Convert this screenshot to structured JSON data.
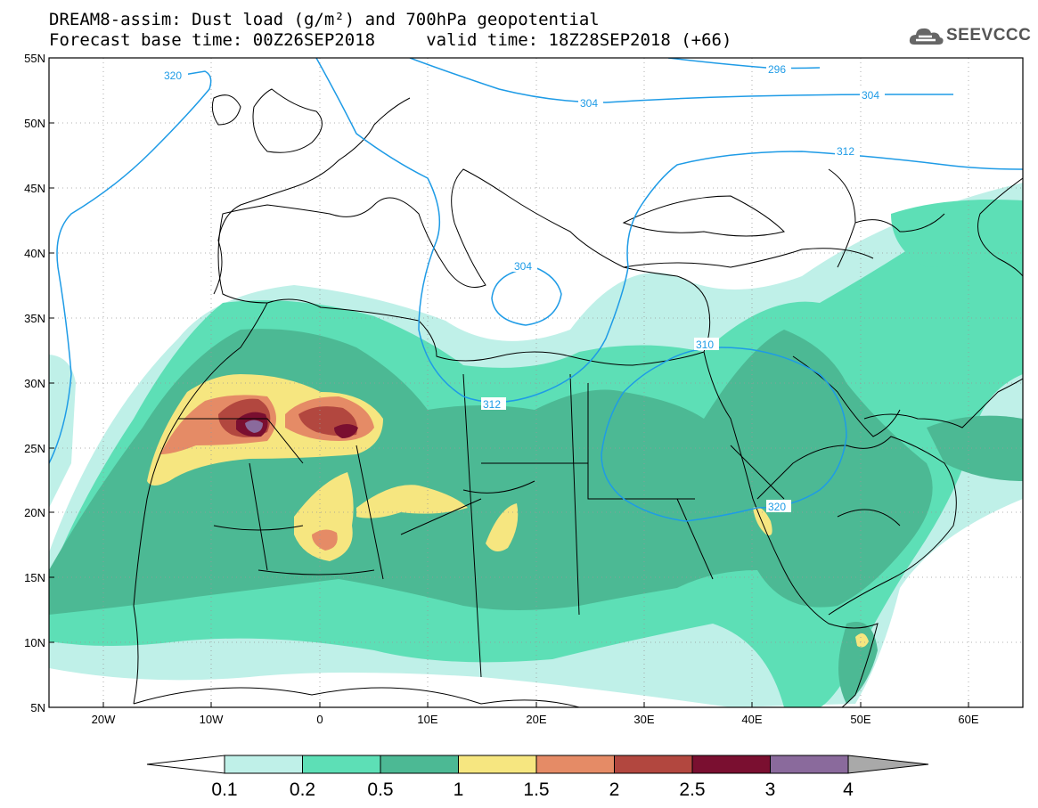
{
  "title": {
    "line1": "DREAM8-assim: Dust load (g/m²) and 700hPa geopotential",
    "line2": "Forecast base time: 00Z26SEP2018     valid time: 18Z28SEP2018 (+66)"
  },
  "logo": {
    "text": "SEEVCCC",
    "icon": "cloud-logo-icon"
  },
  "map": {
    "lon_range": [
      -25,
      65
    ],
    "lat_range": [
      5,
      55
    ],
    "lon_ticks": [
      "20W",
      "10W",
      "0",
      "10E",
      "20E",
      "30E",
      "40E",
      "50E",
      "60E"
    ],
    "lat_ticks": [
      "55N",
      "50N",
      "45N",
      "40N",
      "35N",
      "30N",
      "25N",
      "20N",
      "15N",
      "10N",
      "5N"
    ],
    "grid": "dotted"
  },
  "contours": {
    "variable": "700hPa geopotential",
    "labels": [
      {
        "value": "320",
        "lon": -18,
        "lat": 52.5
      },
      {
        "value": "296",
        "lon": 46,
        "lat": 54
      },
      {
        "value": "304",
        "lon": 27,
        "lat": 51.5
      },
      {
        "value": "304",
        "lon": 50,
        "lat": 52
      },
      {
        "value": "312",
        "lon": 48,
        "lat": 46.5
      },
      {
        "value": "304",
        "lon": 13,
        "lat": 37.5
      },
      {
        "value": "312",
        "lon": 16,
        "lat": 28.5
      },
      {
        "value": "310",
        "lon": 36,
        "lat": 32
      },
      {
        "value": "320",
        "lon": 45,
        "lat": 20.5
      }
    ]
  },
  "colorbar": {
    "ticks": [
      "0.1",
      "0.2",
      "0.5",
      "1",
      "1.5",
      "2",
      "2.5",
      "3",
      "4"
    ],
    "colors": [
      "#ffffff",
      "#bff0e8",
      "#5ddfb6",
      "#4cb994",
      "#f6e680",
      "#e58b66",
      "#b2473f",
      "#7a0f30",
      "#8a6a9c",
      "#a9a9a9"
    ]
  }
}
